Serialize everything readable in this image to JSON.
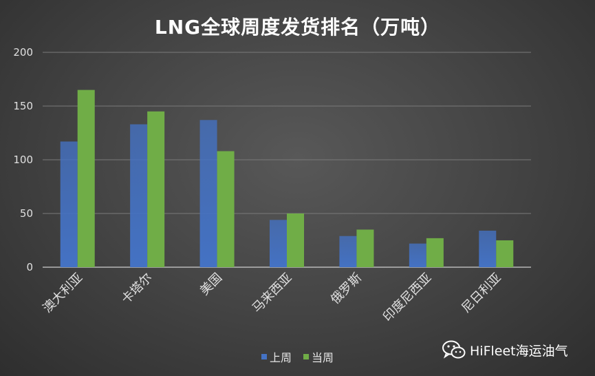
{
  "chart_data": {
    "type": "bar",
    "title": "LNG全球周度发货排名（万吨）",
    "categories": [
      "澳大利亚",
      "卡塔尔",
      "美国",
      "马来西亚",
      "俄罗斯",
      "印度尼西亚",
      "尼日利亚"
    ],
    "series": [
      {
        "name": "上周",
        "values": [
          117,
          133,
          137,
          44,
          29,
          22,
          34
        ],
        "color": "#4472c4"
      },
      {
        "name": "当周",
        "values": [
          165,
          145,
          108,
          50,
          35,
          27,
          25
        ],
        "color": "#70ad47"
      }
    ],
    "ylim": [
      0,
      200
    ],
    "yticks": [
      0,
      50,
      100,
      150,
      200
    ],
    "grid": true,
    "legend": "bottom",
    "xlabel": "",
    "ylabel": ""
  },
  "watermark": {
    "text": "HiFleet海运油气",
    "icon": "wechat-icon"
  }
}
